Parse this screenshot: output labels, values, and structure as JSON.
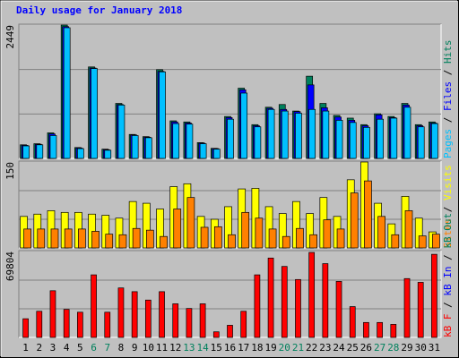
{
  "chart_data": [
    {
      "type": "bar",
      "title": "Daily usage for January 2018",
      "ylim": [
        0,
        2449
      ],
      "yticks": [
        2449
      ],
      "legend_separator": " / ",
      "series": [
        {
          "name": "Hits",
          "color": "#00805c",
          "values": [
            250,
            270,
            470,
            2449,
            200,
            1680,
            170,
            1010,
            440,
            400,
            1630,
            690,
            670,
            290,
            185,
            770,
            1290,
            620,
            940,
            990,
            870,
            1510,
            1010,
            790,
            740,
            620,
            820,
            770,
            1010,
            620,
            670
          ]
        },
        {
          "name": "Files",
          "color": "#0000ff",
          "values": [
            240,
            260,
            450,
            2420,
            190,
            1660,
            160,
            990,
            430,
            390,
            1600,
            670,
            650,
            280,
            180,
            750,
            1260,
            600,
            920,
            900,
            860,
            1350,
            930,
            760,
            700,
            600,
            800,
            750,
            980,
            600,
            650
          ]
        },
        {
          "name": "Pages",
          "color": "#00c0ff",
          "values": [
            230,
            250,
            420,
            2400,
            180,
            1650,
            150,
            980,
            420,
            380,
            1590,
            640,
            630,
            270,
            170,
            720,
            1200,
            580,
            900,
            870,
            830,
            900,
            870,
            700,
            660,
            570,
            720,
            740,
            940,
            580,
            640
          ]
        }
      ]
    },
    {
      "type": "bar",
      "ylim": [
        0,
        150
      ],
      "yticks": [
        150
      ],
      "legend_separator": " / ",
      "series": [
        {
          "name": "Visits",
          "color": "#ffff00",
          "values": [
            55,
            59,
            65,
            62,
            62,
            59,
            57,
            52,
            81,
            78,
            68,
            107,
            112,
            55,
            50,
            72,
            103,
            104,
            72,
            60,
            81,
            60,
            88,
            55,
            119,
            150,
            78,
            42,
            90,
            52,
            28
          ]
        },
        {
          "name": "Sites",
          "color": "#ff8000",
          "values": [
            33,
            33,
            33,
            33,
            33,
            29,
            24,
            23,
            34,
            31,
            20,
            68,
            88,
            36,
            37,
            23,
            62,
            52,
            33,
            20,
            34,
            23,
            49,
            33,
            96,
            117,
            55,
            23,
            65,
            21,
            24
          ]
        }
      ]
    },
    {
      "type": "bar",
      "ylim": [
        0,
        69804
      ],
      "yticks": [
        69804
      ],
      "legend_separator": " / ",
      "categories": [
        "1",
        "2",
        "3",
        "4",
        "5",
        "6",
        "7",
        "8",
        "9",
        "10",
        "11",
        "12",
        "13",
        "14",
        "15",
        "16",
        "17",
        "18",
        "19",
        "20",
        "21",
        "22",
        "23",
        "24",
        "25",
        "26",
        "27",
        "28",
        "29",
        "30",
        "31"
      ],
      "category_colors": [
        "#000000",
        "#000000",
        "#000000",
        "#000000",
        "#000000",
        "#00805c",
        "#00805c",
        "#000000",
        "#000000",
        "#000000",
        "#000000",
        "#000000",
        "#00805c",
        "#00805c",
        "#000000",
        "#000000",
        "#000000",
        "#000000",
        "#000000",
        "#00805c",
        "#00805c",
        "#000000",
        "#000000",
        "#000000",
        "#000000",
        "#000000",
        "#00805c",
        "#00805c",
        "#000000",
        "#000000",
        "#000000"
      ],
      "series": [
        {
          "name": "kB Out",
          "color": "#00805c"
        },
        {
          "name": "kB In",
          "color": "#0000ff"
        },
        {
          "name": "kB F",
          "color": "#ff0000",
          "values": [
            15170,
            21240,
            37930,
            22760,
            20480,
            50830,
            20480,
            40200,
            37170,
            30350,
            37170,
            27310,
            23520,
            27310,
            4550,
            9860,
            21240,
            50830,
            64490,
            57660,
            47040,
            69040,
            59940,
            45520,
            25040,
            12140,
            12140,
            10620,
            47800,
            44760,
            67520
          ]
        }
      ]
    }
  ]
}
